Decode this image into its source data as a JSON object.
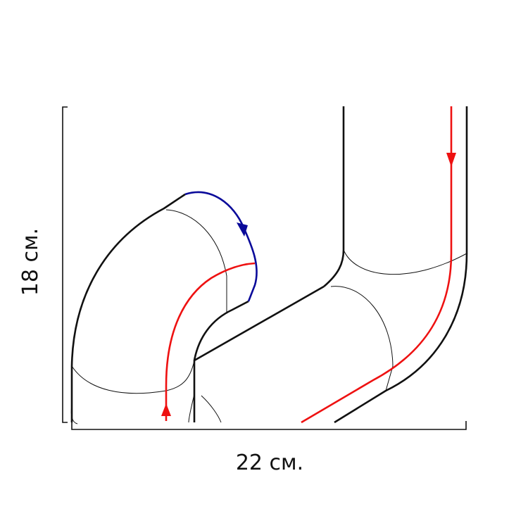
{
  "dimensions": {
    "width_label": "22 см.",
    "height_label": "18 см."
  },
  "colors": {
    "outline": "#111111",
    "flow_hot": "#ee1111",
    "flow_return": "#0a0a9a"
  }
}
